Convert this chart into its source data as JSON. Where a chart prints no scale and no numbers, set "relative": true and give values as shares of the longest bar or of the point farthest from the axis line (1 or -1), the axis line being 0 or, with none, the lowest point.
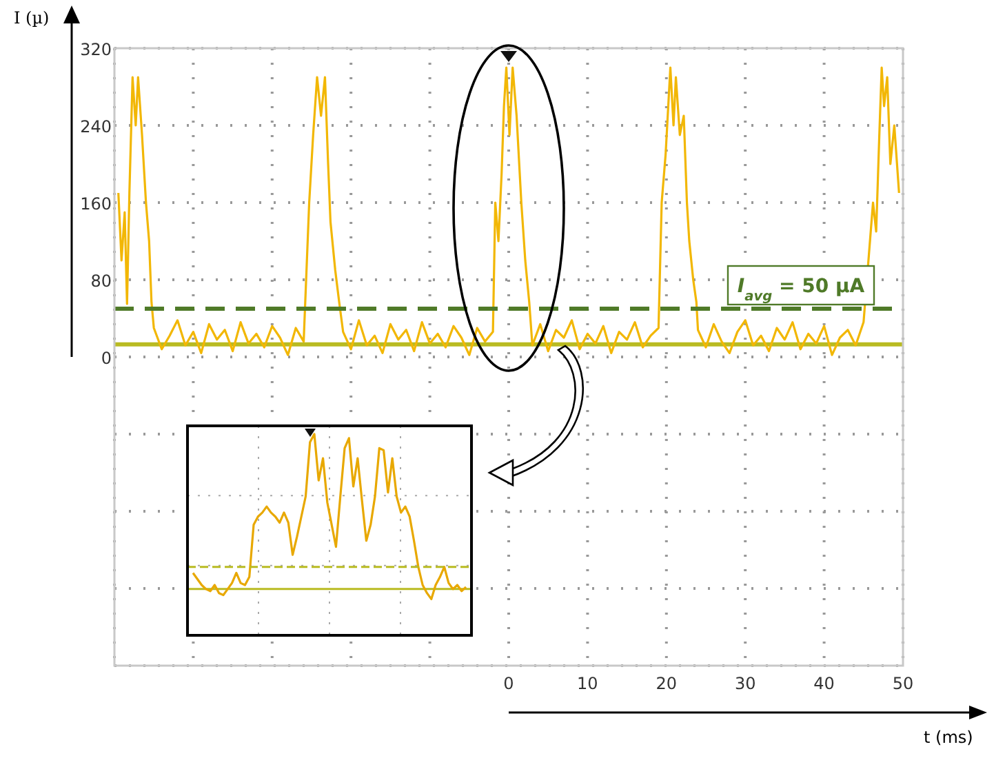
{
  "chart_data": [
    {
      "type": "line",
      "xlabel": "t (ms)",
      "ylabel": "I (µ)",
      "xlim": [
        -50,
        50
      ],
      "ylim": [
        -320,
        320
      ],
      "xticks": [
        {
          "value": -50,
          "label": null
        },
        {
          "value": -40,
          "label": null
        },
        {
          "value": -30,
          "label": null
        },
        {
          "value": -20,
          "label": null
        },
        {
          "value": -10,
          "label": null
        },
        0,
        10,
        20,
        30,
        40,
        50
      ],
      "yticks": [
        {
          "value": -320,
          "label": null
        },
        {
          "value": -240,
          "label": null
        },
        {
          "value": -160,
          "label": null
        },
        {
          "value": -80,
          "label": null
        },
        0,
        80,
        160,
        240,
        320
      ],
      "grid": true,
      "series": [
        {
          "color": "#f2b705",
          "x": [
            -49.5,
            -49.1,
            -48.7,
            -48.4,
            -48.1,
            -47.7,
            -47.3,
            -47.0,
            -46.5,
            -46.0,
            -45.6,
            -45.3,
            -45,
            -44,
            -43,
            -42,
            -41,
            -40,
            -39,
            -38,
            -37,
            -36,
            -35,
            -34,
            -33,
            -32,
            -31,
            -30,
            -29,
            -28,
            -27,
            -26,
            -25.3,
            -24.8,
            -24.3,
            -23.8,
            -23.3,
            -22.9,
            -22.6,
            -22.0,
            -21.5,
            -21,
            -20,
            -19,
            -18,
            -17,
            -16,
            -15,
            -14,
            -13,
            -12,
            -11,
            -10,
            -9,
            -8,
            -7,
            -6,
            -5,
            -4,
            -3,
            -2,
            -1.7,
            -1.3,
            -0.9,
            -0.6,
            -0.3,
            0.1,
            0.5,
            1.0,
            1.6,
            2.1,
            2.6,
            3,
            4,
            5,
            6,
            7,
            8,
            9,
            10,
            11,
            12,
            13,
            14,
            15,
            16,
            17,
            18,
            19,
            19.4,
            19.9,
            20.5,
            20.9,
            21.2,
            21.7,
            22.2,
            22.6,
            22.9,
            23.4,
            23.8,
            24,
            25,
            26,
            27,
            28,
            29,
            30,
            31,
            32,
            33,
            34,
            35,
            36,
            37,
            38,
            39,
            40,
            41,
            42,
            43,
            44,
            45,
            46.2,
            46.6,
            47.0,
            47.3,
            47.6,
            48.0,
            48.4,
            48.9,
            49.5
          ],
          "values": [
            170,
            100,
            150,
            55,
            170,
            290,
            240,
            290,
            230,
            160,
            120,
            57,
            30,
            8,
            22,
            38,
            12,
            26,
            4,
            34,
            18,
            28,
            6,
            36,
            14,
            24,
            10,
            32,
            20,
            2,
            30,
            16,
            160,
            230,
            290,
            250,
            290,
            200,
            140,
            90,
            57,
            26,
            8,
            38,
            12,
            22,
            4,
            34,
            18,
            28,
            6,
            36,
            14,
            24,
            10,
            32,
            20,
            2,
            30,
            16,
            26,
            160,
            120,
            190,
            260,
            300,
            230,
            300,
            250,
            160,
            100,
            57,
            12,
            34,
            6,
            28,
            20,
            38,
            8,
            24,
            14,
            32,
            4,
            26,
            18,
            36,
            10,
            22,
            30,
            160,
            210,
            300,
            240,
            290,
            230,
            250,
            160,
            120,
            80,
            57,
            28,
            10,
            34,
            16,
            4,
            26,
            38,
            12,
            22,
            6,
            30,
            18,
            36,
            8,
            24,
            14,
            32,
            2,
            20,
            28,
            12,
            36,
            160,
            130,
            230,
            300,
            260,
            290,
            200,
            240,
            170
          ]
        }
      ],
      "ref_lines": [
        {
          "axis": "y",
          "value": 50,
          "label": "I$_{avg}$ = 50 µA",
          "color": "#4f7a28",
          "line_style": "dashed"
        },
        {
          "axis": "y",
          "value": 13,
          "color": "#b9bb22",
          "line_style": "solid"
        }
      ]
    },
    {
      "type": "line",
      "relative": true,
      "grid": true,
      "categories": [
        null,
        null,
        null,
        null,
        null,
        null,
        null,
        null,
        null,
        null,
        null,
        null,
        null,
        null,
        null,
        null,
        null,
        null,
        null,
        null,
        null,
        null,
        null,
        null,
        null,
        null,
        null,
        null,
        null,
        null,
        null,
        null,
        null,
        null,
        null,
        null,
        null,
        null,
        null,
        null,
        null,
        null,
        null,
        null,
        null,
        null,
        null,
        null,
        null,
        null,
        null,
        null,
        null,
        null,
        null,
        null,
        null,
        null,
        null,
        null,
        null,
        null,
        null,
        null
      ],
      "series": [
        {
          "color": "#e8a800",
          "values": [
            0.31,
            0.28,
            0.25,
            0.23,
            0.22,
            0.25,
            0.21,
            0.2,
            0.23,
            0.26,
            0.31,
            0.26,
            0.25,
            0.29,
            0.55,
            0.59,
            0.61,
            0.64,
            0.61,
            0.59,
            0.56,
            0.61,
            0.56,
            0.4,
            0.49,
            0.59,
            0.69,
            0.96,
            1,
            0.77,
            0.88,
            0.66,
            0.55,
            0.44,
            0.69,
            0.93,
            0.98,
            0.74,
            0.88,
            0.67,
            0.47,
            0.55,
            0.69,
            0.93,
            0.92,
            0.71,
            0.88,
            0.69,
            0.61,
            0.64,
            0.59,
            0.47,
            0.34,
            0.25,
            0.21,
            0.18,
            0.25,
            0.29,
            0.34,
            0.26,
            0.23,
            0.25,
            0.22,
            0.24
          ]
        }
      ],
      "ref_lines": [
        {
          "axis": "y",
          "value": 0.34,
          "color": "#b9bb22",
          "line_style": "dashed"
        },
        {
          "axis": "y",
          "value": 0.23,
          "color": "#b9bb22",
          "line_style": "solid"
        }
      ]
    }
  ]
}
